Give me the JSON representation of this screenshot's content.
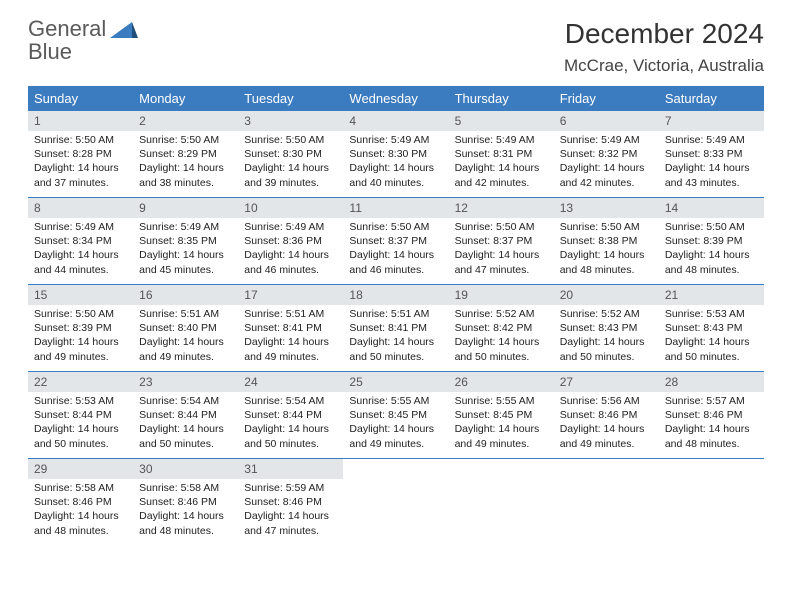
{
  "logo": {
    "word1": "General",
    "word2": "Blue"
  },
  "title": "December 2024",
  "location": "McCrae, Victoria, Australia",
  "colors": {
    "header_blue": "#3b7bbf",
    "daynum_bg": "#e2e6e9",
    "text_dark": "#222222",
    "title_gray": "#333333"
  },
  "weekdays": [
    "Sunday",
    "Monday",
    "Tuesday",
    "Wednesday",
    "Thursday",
    "Friday",
    "Saturday"
  ],
  "weeks": [
    [
      {
        "n": "1",
        "sr": "5:50 AM",
        "ss": "8:28 PM",
        "dh": "14",
        "dm": "37"
      },
      {
        "n": "2",
        "sr": "5:50 AM",
        "ss": "8:29 PM",
        "dh": "14",
        "dm": "38"
      },
      {
        "n": "3",
        "sr": "5:50 AM",
        "ss": "8:30 PM",
        "dh": "14",
        "dm": "39"
      },
      {
        "n": "4",
        "sr": "5:49 AM",
        "ss": "8:30 PM",
        "dh": "14",
        "dm": "40"
      },
      {
        "n": "5",
        "sr": "5:49 AM",
        "ss": "8:31 PM",
        "dh": "14",
        "dm": "42"
      },
      {
        "n": "6",
        "sr": "5:49 AM",
        "ss": "8:32 PM",
        "dh": "14",
        "dm": "42"
      },
      {
        "n": "7",
        "sr": "5:49 AM",
        "ss": "8:33 PM",
        "dh": "14",
        "dm": "43"
      }
    ],
    [
      {
        "n": "8",
        "sr": "5:49 AM",
        "ss": "8:34 PM",
        "dh": "14",
        "dm": "44"
      },
      {
        "n": "9",
        "sr": "5:49 AM",
        "ss": "8:35 PM",
        "dh": "14",
        "dm": "45"
      },
      {
        "n": "10",
        "sr": "5:49 AM",
        "ss": "8:36 PM",
        "dh": "14",
        "dm": "46"
      },
      {
        "n": "11",
        "sr": "5:50 AM",
        "ss": "8:37 PM",
        "dh": "14",
        "dm": "46"
      },
      {
        "n": "12",
        "sr": "5:50 AM",
        "ss": "8:37 PM",
        "dh": "14",
        "dm": "47"
      },
      {
        "n": "13",
        "sr": "5:50 AM",
        "ss": "8:38 PM",
        "dh": "14",
        "dm": "48"
      },
      {
        "n": "14",
        "sr": "5:50 AM",
        "ss": "8:39 PM",
        "dh": "14",
        "dm": "48"
      }
    ],
    [
      {
        "n": "15",
        "sr": "5:50 AM",
        "ss": "8:39 PM",
        "dh": "14",
        "dm": "49"
      },
      {
        "n": "16",
        "sr": "5:51 AM",
        "ss": "8:40 PM",
        "dh": "14",
        "dm": "49"
      },
      {
        "n": "17",
        "sr": "5:51 AM",
        "ss": "8:41 PM",
        "dh": "14",
        "dm": "49"
      },
      {
        "n": "18",
        "sr": "5:51 AM",
        "ss": "8:41 PM",
        "dh": "14",
        "dm": "50"
      },
      {
        "n": "19",
        "sr": "5:52 AM",
        "ss": "8:42 PM",
        "dh": "14",
        "dm": "50"
      },
      {
        "n": "20",
        "sr": "5:52 AM",
        "ss": "8:43 PM",
        "dh": "14",
        "dm": "50"
      },
      {
        "n": "21",
        "sr": "5:53 AM",
        "ss": "8:43 PM",
        "dh": "14",
        "dm": "50"
      }
    ],
    [
      {
        "n": "22",
        "sr": "5:53 AM",
        "ss": "8:44 PM",
        "dh": "14",
        "dm": "50"
      },
      {
        "n": "23",
        "sr": "5:54 AM",
        "ss": "8:44 PM",
        "dh": "14",
        "dm": "50"
      },
      {
        "n": "24",
        "sr": "5:54 AM",
        "ss": "8:44 PM",
        "dh": "14",
        "dm": "50"
      },
      {
        "n": "25",
        "sr": "5:55 AM",
        "ss": "8:45 PM",
        "dh": "14",
        "dm": "49"
      },
      {
        "n": "26",
        "sr": "5:55 AM",
        "ss": "8:45 PM",
        "dh": "14",
        "dm": "49"
      },
      {
        "n": "27",
        "sr": "5:56 AM",
        "ss": "8:46 PM",
        "dh": "14",
        "dm": "49"
      },
      {
        "n": "28",
        "sr": "5:57 AM",
        "ss": "8:46 PM",
        "dh": "14",
        "dm": "48"
      }
    ],
    [
      {
        "n": "29",
        "sr": "5:58 AM",
        "ss": "8:46 PM",
        "dh": "14",
        "dm": "48"
      },
      {
        "n": "30",
        "sr": "5:58 AM",
        "ss": "8:46 PM",
        "dh": "14",
        "dm": "48"
      },
      {
        "n": "31",
        "sr": "5:59 AM",
        "ss": "8:46 PM",
        "dh": "14",
        "dm": "47"
      },
      null,
      null,
      null,
      null
    ]
  ],
  "labels": {
    "sunrise": "Sunrise:",
    "sunset": "Sunset:",
    "daylight": "Daylight:",
    "hours": "hours",
    "and": "and",
    "minutes": "minutes."
  }
}
